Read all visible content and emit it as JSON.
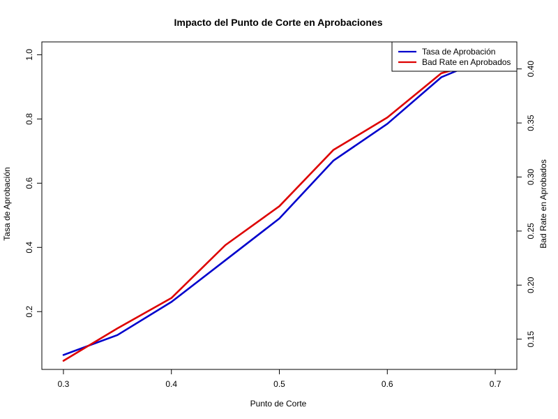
{
  "chart_data": {
    "type": "line",
    "title": "Impacto del Punto de Corte en Aprobaciones",
    "xlabel": "Punto de Corte",
    "ylabel_left": "Tasa de Aprobación",
    "ylabel_right": "Bad Rate en Aprobados",
    "xlim": [
      0.28,
      0.72
    ],
    "ylim_left": [
      0.02,
      1.04
    ],
    "ylim_right": [
      0.122,
      0.425
    ],
    "x_ticks": [
      "0.3",
      "0.4",
      "0.5",
      "0.6",
      "0.7"
    ],
    "y_left_ticks": [
      "0.2",
      "0.4",
      "0.6",
      "0.8",
      "1.0"
    ],
    "y_right_ticks": [
      "0.15",
      "0.20",
      "0.25",
      "0.30",
      "0.35",
      "0.40"
    ],
    "grid": false,
    "legend_position": "top-right",
    "series": [
      {
        "name": "Tasa de Aprobación",
        "axis": "left",
        "color": "#0000cc",
        "x": [
          0.3,
          0.35,
          0.4,
          0.45,
          0.5,
          0.55,
          0.6,
          0.65,
          0.7
        ],
        "y": [
          0.065,
          0.127,
          0.23,
          0.36,
          0.49,
          0.67,
          0.785,
          0.93,
          1.0
        ]
      },
      {
        "name": "Bad Rate en Aprobados",
        "axis": "right",
        "color": "#dd0000",
        "x": [
          0.3,
          0.35,
          0.4,
          0.45,
          0.5,
          0.55,
          0.6,
          0.65,
          0.7
        ],
        "y": [
          0.13,
          0.16,
          0.188,
          0.237,
          0.273,
          0.325,
          0.355,
          0.396,
          0.41
        ]
      }
    ]
  }
}
